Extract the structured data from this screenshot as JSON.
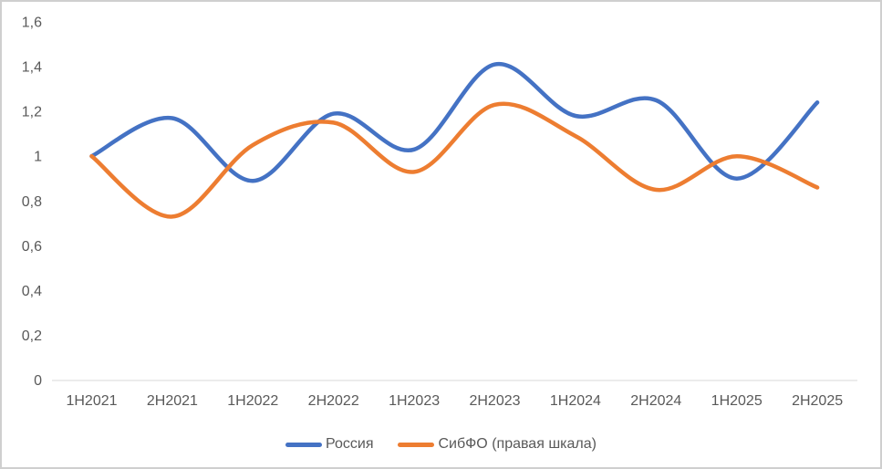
{
  "colors": {
    "series_russia": "#4472C4",
    "series_sibfo": "#ED7D31",
    "axis_line": "#D9D9D9",
    "label_text": "#595959",
    "frame_border": "#CFCFCF",
    "background": "#FFFFFF"
  },
  "chart_data": {
    "type": "line",
    "title": "",
    "xlabel": "",
    "ylabel": "",
    "categories": [
      "1H2021",
      "2H2021",
      "1H2022",
      "2H2022",
      "1H2023",
      "2H2023",
      "1H2024",
      "2H2024",
      "1H2025",
      "2H2025"
    ],
    "series": [
      {
        "name": "Россия",
        "color": "#4472C4",
        "values": [
          1.0,
          1.17,
          0.89,
          1.19,
          1.03,
          1.41,
          1.18,
          1.25,
          0.9,
          1.24
        ]
      },
      {
        "name": "СибФО (правая шкала)",
        "color": "#ED7D31",
        "values": [
          1.0,
          0.73,
          1.05,
          1.15,
          0.93,
          1.23,
          1.09,
          0.85,
          1.0,
          0.86
        ]
      }
    ],
    "ylim": [
      0,
      1.6
    ],
    "y_tick_step": 0.2,
    "decimal_separator": ",",
    "y_ticks": [
      {
        "value": 0.0,
        "label": "0"
      },
      {
        "value": 0.2,
        "label": "0,2"
      },
      {
        "value": 0.4,
        "label": "0,4"
      },
      {
        "value": 0.6,
        "label": "0,6"
      },
      {
        "value": 0.8,
        "label": "0,8"
      },
      {
        "value": 1.0,
        "label": "1"
      },
      {
        "value": 1.2,
        "label": "1,2"
      },
      {
        "value": 1.4,
        "label": "1,4"
      },
      {
        "value": 1.6,
        "label": "1,6"
      }
    ],
    "grid": false,
    "line_smoothing": true,
    "legend_position": "bottom"
  }
}
